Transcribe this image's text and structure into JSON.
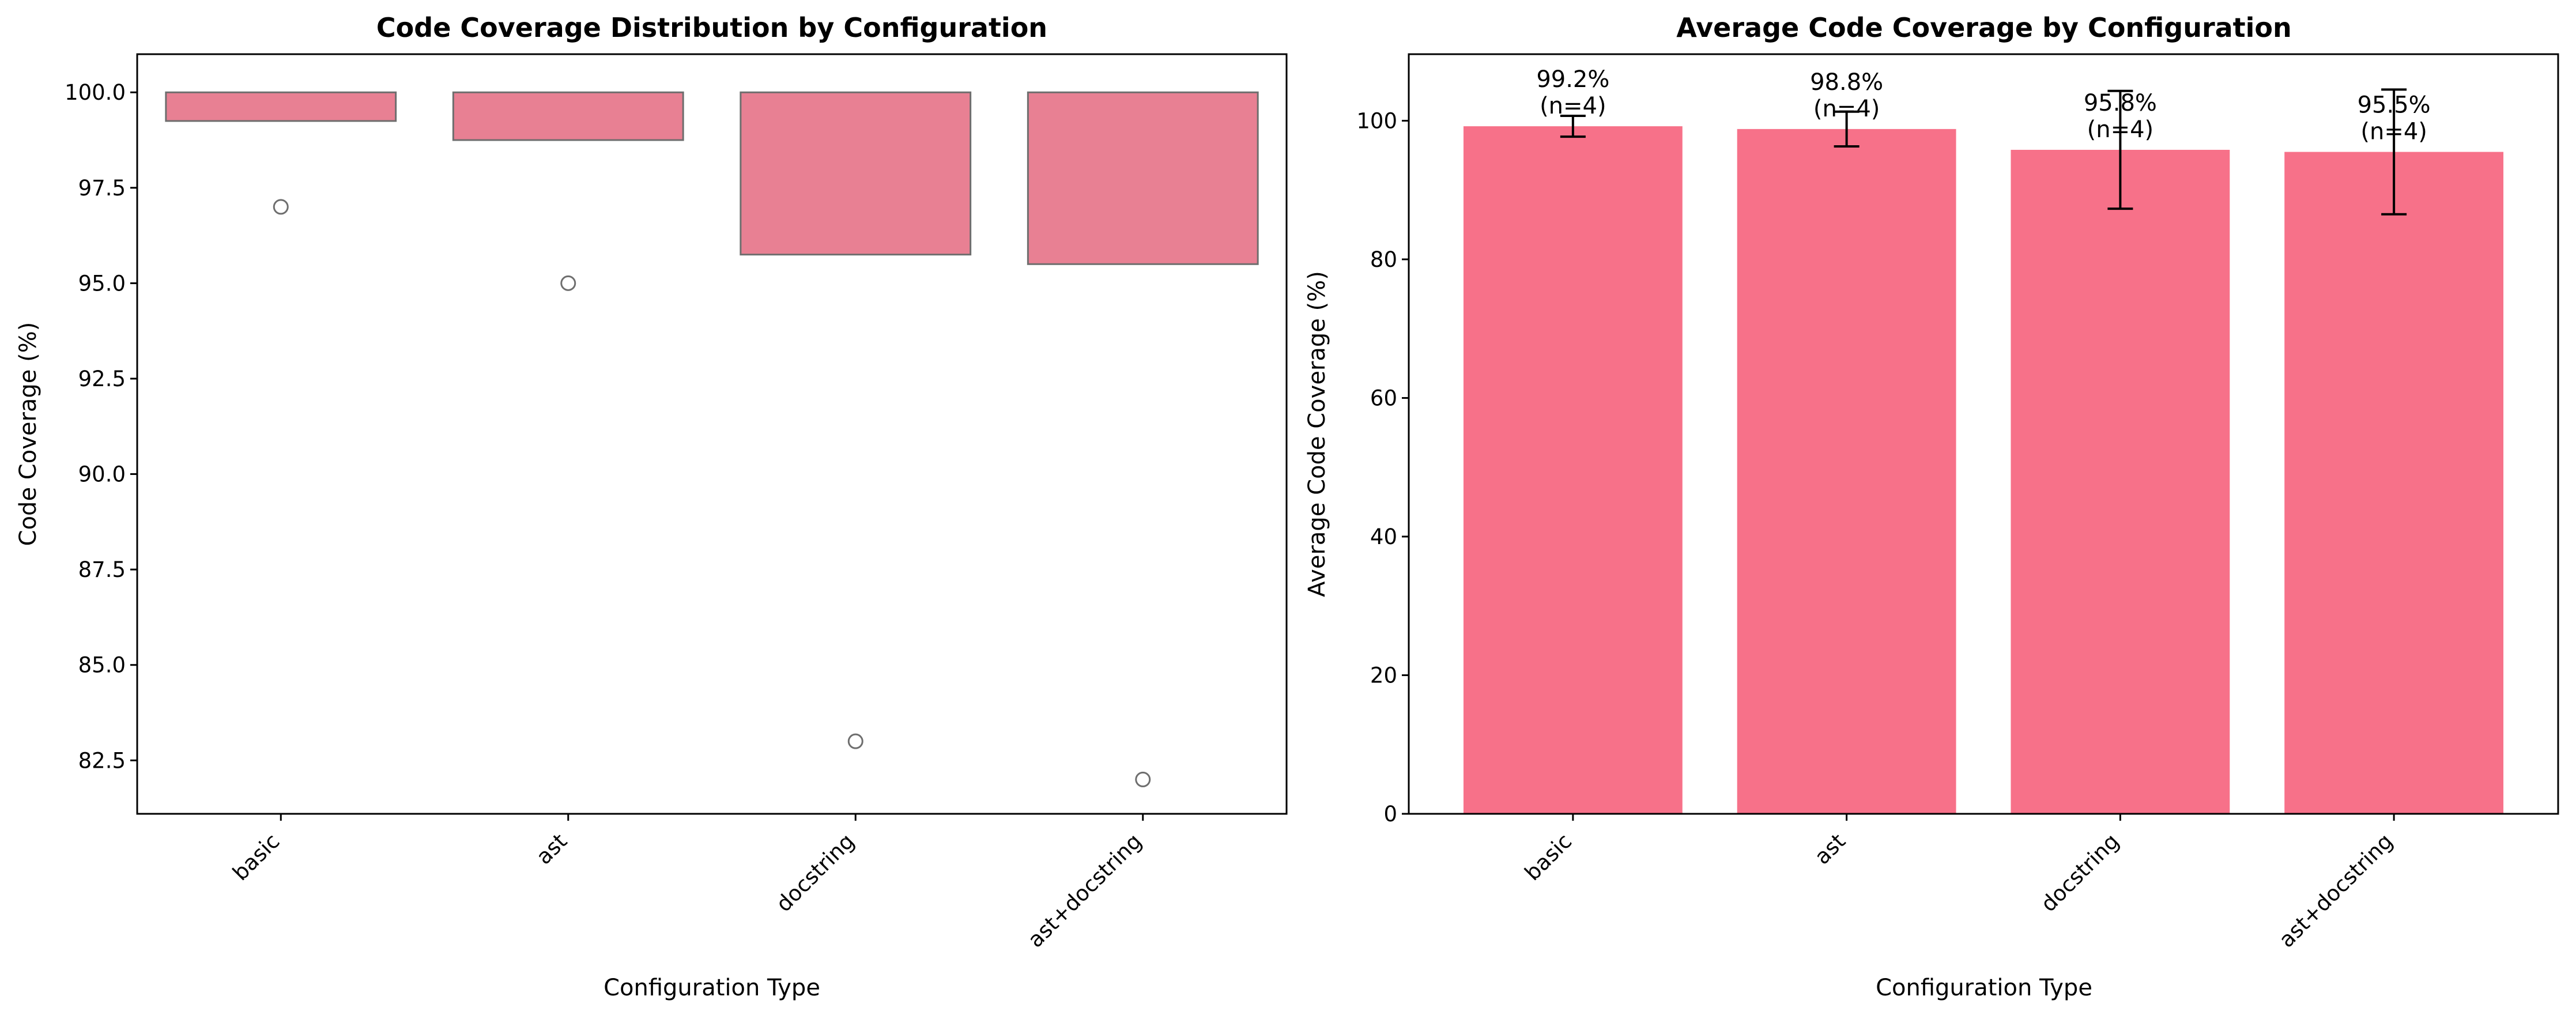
{
  "colors": {
    "box_fill": "#e88093",
    "box_edge": "#6e6e6e",
    "bar_fill": "#f77189",
    "errorbar": "#000000",
    "axes": "#000000"
  },
  "chart_data": [
    {
      "type": "box",
      "title": "Code Coverage Distribution by Configuration",
      "xlabel": "Configuration Type",
      "ylabel": "Code Coverage (%)",
      "categories": [
        "basic",
        "ast",
        "docstring",
        "ast+docstring"
      ],
      "ylim": [
        81.1,
        101.0
      ],
      "yticks": [
        82.5,
        85.0,
        87.5,
        90.0,
        92.5,
        95.0,
        97.5,
        100.0
      ],
      "ytick_labels": [
        "82.5",
        "85.0",
        "87.5",
        "90.0",
        "92.5",
        "95.0",
        "97.5",
        "100.0"
      ],
      "boxes": [
        {
          "category": "basic",
          "q1": 99.25,
          "q3": 100.0,
          "median": 100.0,
          "whisker_low": 99.25,
          "whisker_high": 100.0,
          "outliers": [
            97.0
          ]
        },
        {
          "category": "ast",
          "q1": 98.75,
          "q3": 100.0,
          "median": 100.0,
          "whisker_low": 98.75,
          "whisker_high": 100.0,
          "outliers": [
            95.0
          ]
        },
        {
          "category": "docstring",
          "q1": 95.75,
          "q3": 100.0,
          "median": 100.0,
          "whisker_low": 95.75,
          "whisker_high": 100.0,
          "outliers": [
            83.0
          ]
        },
        {
          "category": "ast+docstring",
          "q1": 95.5,
          "q3": 100.0,
          "median": 100.0,
          "whisker_low": 95.5,
          "whisker_high": 100.0,
          "outliers": [
            82.0
          ]
        }
      ],
      "grid": false,
      "xtick_rotation": 45
    },
    {
      "type": "bar",
      "title": "Average Code Coverage by Configuration",
      "xlabel": "Configuration Type",
      "ylabel": "Average Code Coverage (%)",
      "categories": [
        "basic",
        "ast",
        "docstring",
        "ast+docstring"
      ],
      "values": [
        99.2,
        98.8,
        95.8,
        95.5
      ],
      "errors": [
        1.5,
        2.5,
        8.5,
        9.0
      ],
      "data_labels": [
        "99.2%\n(n=4)",
        "98.8%\n(n=4)",
        "95.8%\n(n=4)",
        "95.5%\n(n=4)"
      ],
      "ylim": [
        0,
        109.6
      ],
      "yticks": [
        0,
        20,
        40,
        60,
        80,
        100
      ],
      "ytick_labels": [
        "0",
        "20",
        "40",
        "60",
        "80",
        "100"
      ],
      "grid": false,
      "xtick_rotation": 45
    }
  ]
}
